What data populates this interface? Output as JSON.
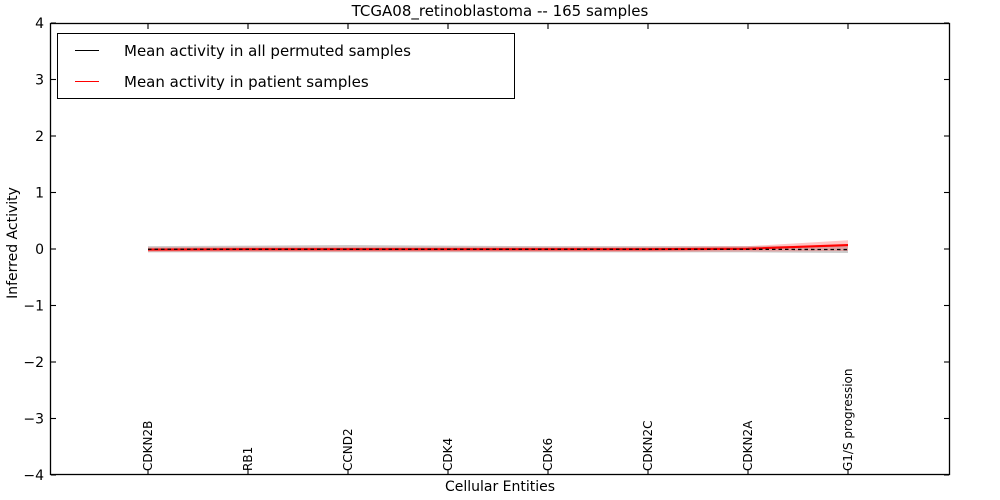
{
  "chart": {
    "title": "TCGA08_retinoblastoma -- 165 samples",
    "xlabel": "Cellular Entities",
    "ylabel": "Inferred Activity",
    "legend": [
      {
        "label": "Mean activity in all permuted samples",
        "color": "#000000"
      },
      {
        "label": "Mean activity in patient samples",
        "color": "#ff0000"
      }
    ]
  },
  "chart_data": {
    "type": "line",
    "title": "TCGA08_retinoblastoma -- 165 samples",
    "xlabel": "Cellular Entities",
    "ylabel": "Inferred Activity",
    "ylim": [
      -4,
      4
    ],
    "yticks": [
      4,
      3,
      2,
      1,
      0,
      -1,
      -2,
      -3,
      -4
    ],
    "ytick_labels": [
      "4",
      "3",
      "2",
      "1",
      "0",
      "−1",
      "−2",
      "−3",
      "−4"
    ],
    "categories": [
      "CDKN2B",
      "RB1",
      "CCND2",
      "CDK4",
      "CDK6",
      "CDKN2C",
      "CDKN2A",
      "G1/S progression"
    ],
    "grid": false,
    "legend_position": "upper left",
    "series": [
      {
        "name": "Mean activity in all permuted samples",
        "color": "#000000",
        "style": "dashed",
        "values": [
          -0.005,
          -0.005,
          -0.005,
          -0.005,
          -0.005,
          -0.005,
          -0.005,
          -0.01
        ],
        "band_upper": [
          0.05,
          0.06,
          0.07,
          0.06,
          0.05,
          0.05,
          0.05,
          0.06
        ],
        "band_lower": [
          -0.06,
          -0.06,
          -0.06,
          -0.06,
          -0.06,
          -0.06,
          -0.06,
          -0.07
        ],
        "band_color": "#999999",
        "band_opacity": 0.5
      },
      {
        "name": "Mean activity in patient samples",
        "color": "#ff0000",
        "style": "solid",
        "values": [
          -0.01,
          -0.005,
          -0.005,
          -0.005,
          -0.005,
          -0.005,
          0.005,
          0.07
        ],
        "band_upper": [
          0.03,
          0.04,
          0.04,
          0.04,
          0.04,
          0.04,
          0.05,
          0.155
        ],
        "band_lower": [
          -0.05,
          -0.05,
          -0.05,
          -0.05,
          -0.05,
          -0.05,
          -0.045,
          -0.035
        ],
        "band_color": "#ff5555",
        "band_opacity": 0.35
      }
    ]
  }
}
